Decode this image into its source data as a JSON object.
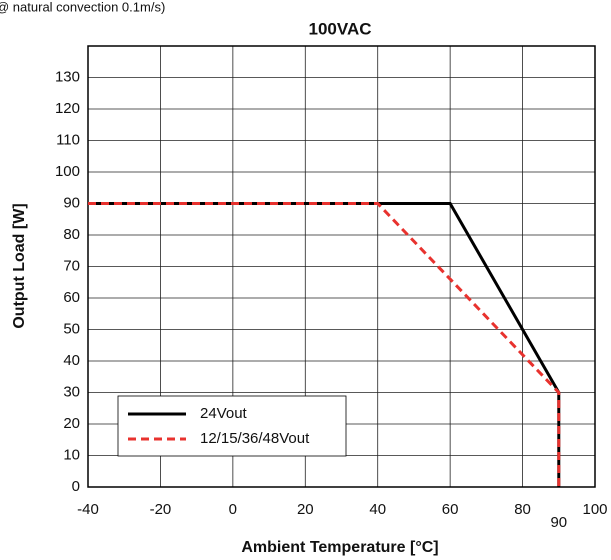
{
  "chart_data": {
    "type": "line",
    "subtitle": "@ natural convection 0.1m/s)",
    "title": "100VAC",
    "x_label": "Ambient Temperature [°C]",
    "y_label": "Output Load [W]",
    "xlim": [
      -40,
      100
    ],
    "xticks": [
      -40,
      -20,
      0,
      20,
      40,
      60,
      80,
      90,
      100
    ],
    "ylim": [
      0,
      140
    ],
    "yticks": [
      0,
      10,
      20,
      30,
      40,
      50,
      60,
      70,
      80,
      90,
      100,
      110,
      120,
      130
    ],
    "grid": true,
    "series": [
      {
        "name": "24Vout",
        "color": "#000000",
        "dash": false,
        "x": [
          -40,
          60,
          90,
          90
        ],
        "values": [
          90,
          90,
          30,
          0
        ]
      },
      {
        "name": "12/15/36/48Vout",
        "color": "#e8322e",
        "dash": true,
        "x": [
          -40,
          40,
          90,
          90
        ],
        "values": [
          90,
          90,
          30,
          0
        ]
      }
    ]
  }
}
